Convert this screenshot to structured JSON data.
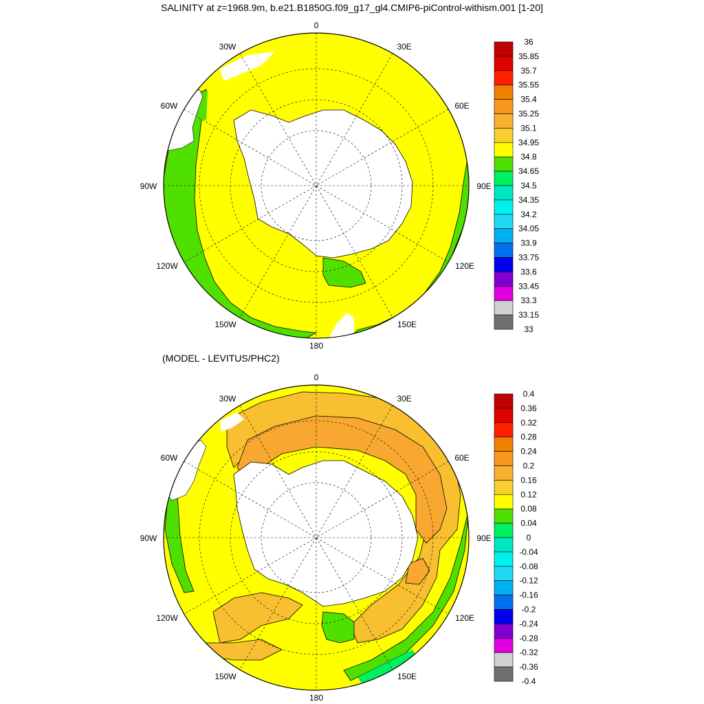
{
  "title": "SALINITY at z=1968.9m, b.e21.B1850G.f09_g17_gl4.CMIP6-piControl-withism.001 [1-20]",
  "subtitle": "(MODEL - LEVITUS/PHC2)",
  "lon_labels": {
    "top": "0",
    "bottom": "180",
    "left": "90W",
    "right": "90E",
    "ul30": "30W",
    "ur30": "30E",
    "ul60": "60W",
    "ur60": "60E",
    "ll120": "120W",
    "lr120": "120E",
    "ll150": "150W",
    "lr150": "150E"
  },
  "colorbar_top": {
    "labels": [
      "36",
      "35.85",
      "35.7",
      "35.55",
      "35.4",
      "35.25",
      "35.1",
      "34.95",
      "34.8",
      "34.65",
      "34.5",
      "34.35",
      "34.2",
      "34.05",
      "33.9",
      "33.75",
      "33.6",
      "33.45",
      "33.3",
      "33.15",
      "33"
    ],
    "colors": [
      "#c00000",
      "#e00000",
      "#ff2000",
      "#f08000",
      "#f89820",
      "#f8b030",
      "#f8d030",
      "#ffff00",
      "#50e000",
      "#00f060",
      "#00e8c0",
      "#00f0f0",
      "#20d8f0",
      "#00b0f0",
      "#0070f0",
      "#0000f0",
      "#8000d0",
      "#e000e0",
      "#d0d0d0",
      "#707070"
    ]
  },
  "colorbar_bottom": {
    "labels": [
      "0.4",
      "0.36",
      "0.32",
      "0.28",
      "0.24",
      "0.2",
      "0.16",
      "0.12",
      "0.08",
      "0.04",
      "0",
      "-0.04",
      "-0.08",
      "-0.12",
      "-0.16",
      "-0.2",
      "-0.24",
      "-0.28",
      "-0.32",
      "-0.36",
      "-0.4"
    ],
    "colors": [
      "#c00000",
      "#e00000",
      "#ff2000",
      "#f08000",
      "#f89820",
      "#f8b030",
      "#f8d030",
      "#ffff00",
      "#50e000",
      "#00f060",
      "#00e8c0",
      "#00f0f0",
      "#20d8f0",
      "#00b0f0",
      "#0070f0",
      "#0000f0",
      "#8000d0",
      "#e000e0",
      "#d0d0d0",
      "#707070"
    ]
  },
  "colors": {
    "yellow": "#ffff00",
    "light_orange": "#f8b030",
    "orange": "#f8a830",
    "green": "#50e000",
    "bright_green": "#00f060",
    "land": "#ffffff"
  }
}
